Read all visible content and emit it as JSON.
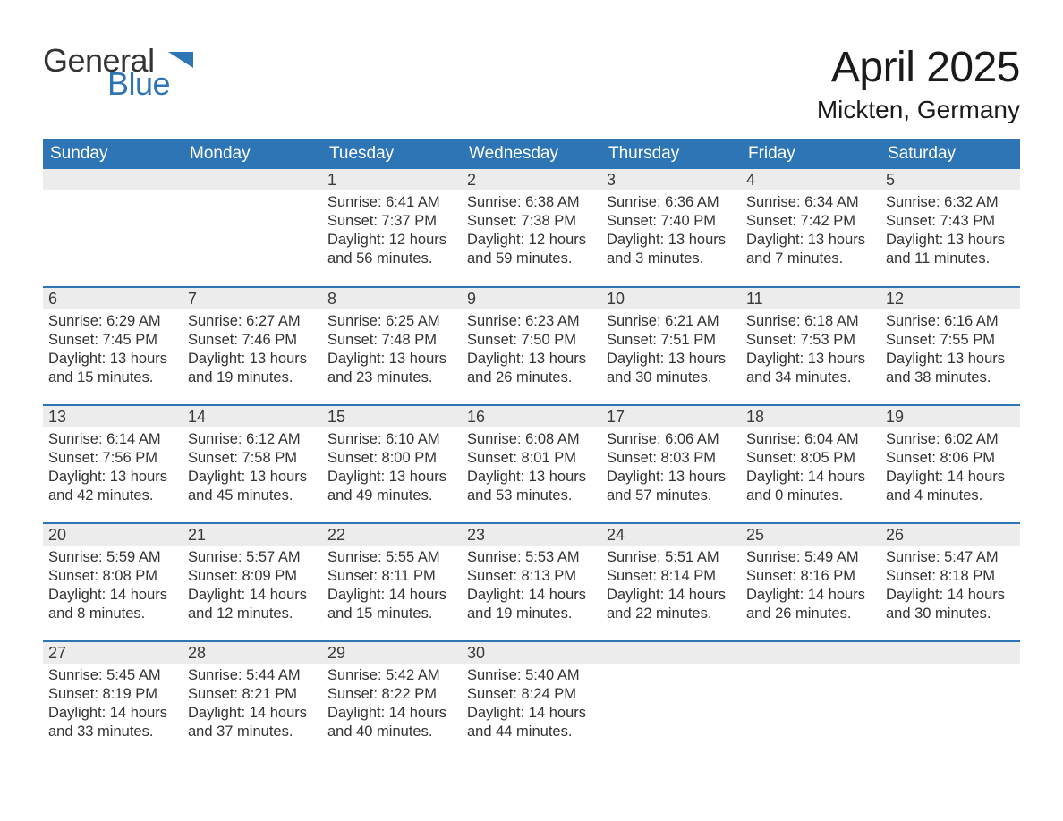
{
  "brand": {
    "logo_general": "General",
    "logo_blue": "Blue",
    "icon_color": "#2e75b6"
  },
  "colors": {
    "header_bg": "#2e75b6",
    "header_text": "#ffffff",
    "daynum_bg": "#ececec",
    "border": "#2e75b6",
    "text": "#333333",
    "page_bg": "#ffffff"
  },
  "title": {
    "month": "April 2025",
    "location": "Mickten, Germany"
  },
  "weekdays": [
    "Sunday",
    "Monday",
    "Tuesday",
    "Wednesday",
    "Thursday",
    "Friday",
    "Saturday"
  ],
  "weeks": [
    [
      {
        "n": "",
        "sunrise": "",
        "sunset": "",
        "daylight": ""
      },
      {
        "n": "",
        "sunrise": "",
        "sunset": "",
        "daylight": ""
      },
      {
        "n": "1",
        "sunrise": "Sunrise: 6:41 AM",
        "sunset": "Sunset: 7:37 PM",
        "daylight": "Daylight: 12 hours and 56 minutes."
      },
      {
        "n": "2",
        "sunrise": "Sunrise: 6:38 AM",
        "sunset": "Sunset: 7:38 PM",
        "daylight": "Daylight: 12 hours and 59 minutes."
      },
      {
        "n": "3",
        "sunrise": "Sunrise: 6:36 AM",
        "sunset": "Sunset: 7:40 PM",
        "daylight": "Daylight: 13 hours and 3 minutes."
      },
      {
        "n": "4",
        "sunrise": "Sunrise: 6:34 AM",
        "sunset": "Sunset: 7:42 PM",
        "daylight": "Daylight: 13 hours and 7 minutes."
      },
      {
        "n": "5",
        "sunrise": "Sunrise: 6:32 AM",
        "sunset": "Sunset: 7:43 PM",
        "daylight": "Daylight: 13 hours and 11 minutes."
      }
    ],
    [
      {
        "n": "6",
        "sunrise": "Sunrise: 6:29 AM",
        "sunset": "Sunset: 7:45 PM",
        "daylight": "Daylight: 13 hours and 15 minutes."
      },
      {
        "n": "7",
        "sunrise": "Sunrise: 6:27 AM",
        "sunset": "Sunset: 7:46 PM",
        "daylight": "Daylight: 13 hours and 19 minutes."
      },
      {
        "n": "8",
        "sunrise": "Sunrise: 6:25 AM",
        "sunset": "Sunset: 7:48 PM",
        "daylight": "Daylight: 13 hours and 23 minutes."
      },
      {
        "n": "9",
        "sunrise": "Sunrise: 6:23 AM",
        "sunset": "Sunset: 7:50 PM",
        "daylight": "Daylight: 13 hours and 26 minutes."
      },
      {
        "n": "10",
        "sunrise": "Sunrise: 6:21 AM",
        "sunset": "Sunset: 7:51 PM",
        "daylight": "Daylight: 13 hours and 30 minutes."
      },
      {
        "n": "11",
        "sunrise": "Sunrise: 6:18 AM",
        "sunset": "Sunset: 7:53 PM",
        "daylight": "Daylight: 13 hours and 34 minutes."
      },
      {
        "n": "12",
        "sunrise": "Sunrise: 6:16 AM",
        "sunset": "Sunset: 7:55 PM",
        "daylight": "Daylight: 13 hours and 38 minutes."
      }
    ],
    [
      {
        "n": "13",
        "sunrise": "Sunrise: 6:14 AM",
        "sunset": "Sunset: 7:56 PM",
        "daylight": "Daylight: 13 hours and 42 minutes."
      },
      {
        "n": "14",
        "sunrise": "Sunrise: 6:12 AM",
        "sunset": "Sunset: 7:58 PM",
        "daylight": "Daylight: 13 hours and 45 minutes."
      },
      {
        "n": "15",
        "sunrise": "Sunrise: 6:10 AM",
        "sunset": "Sunset: 8:00 PM",
        "daylight": "Daylight: 13 hours and 49 minutes."
      },
      {
        "n": "16",
        "sunrise": "Sunrise: 6:08 AM",
        "sunset": "Sunset: 8:01 PM",
        "daylight": "Daylight: 13 hours and 53 minutes."
      },
      {
        "n": "17",
        "sunrise": "Sunrise: 6:06 AM",
        "sunset": "Sunset: 8:03 PM",
        "daylight": "Daylight: 13 hours and 57 minutes."
      },
      {
        "n": "18",
        "sunrise": "Sunrise: 6:04 AM",
        "sunset": "Sunset: 8:05 PM",
        "daylight": "Daylight: 14 hours and 0 minutes."
      },
      {
        "n": "19",
        "sunrise": "Sunrise: 6:02 AM",
        "sunset": "Sunset: 8:06 PM",
        "daylight": "Daylight: 14 hours and 4 minutes."
      }
    ],
    [
      {
        "n": "20",
        "sunrise": "Sunrise: 5:59 AM",
        "sunset": "Sunset: 8:08 PM",
        "daylight": "Daylight: 14 hours and 8 minutes."
      },
      {
        "n": "21",
        "sunrise": "Sunrise: 5:57 AM",
        "sunset": "Sunset: 8:09 PM",
        "daylight": "Daylight: 14 hours and 12 minutes."
      },
      {
        "n": "22",
        "sunrise": "Sunrise: 5:55 AM",
        "sunset": "Sunset: 8:11 PM",
        "daylight": "Daylight: 14 hours and 15 minutes."
      },
      {
        "n": "23",
        "sunrise": "Sunrise: 5:53 AM",
        "sunset": "Sunset: 8:13 PM",
        "daylight": "Daylight: 14 hours and 19 minutes."
      },
      {
        "n": "24",
        "sunrise": "Sunrise: 5:51 AM",
        "sunset": "Sunset: 8:14 PM",
        "daylight": "Daylight: 14 hours and 22 minutes."
      },
      {
        "n": "25",
        "sunrise": "Sunrise: 5:49 AM",
        "sunset": "Sunset: 8:16 PM",
        "daylight": "Daylight: 14 hours and 26 minutes."
      },
      {
        "n": "26",
        "sunrise": "Sunrise: 5:47 AM",
        "sunset": "Sunset: 8:18 PM",
        "daylight": "Daylight: 14 hours and 30 minutes."
      }
    ],
    [
      {
        "n": "27",
        "sunrise": "Sunrise: 5:45 AM",
        "sunset": "Sunset: 8:19 PM",
        "daylight": "Daylight: 14 hours and 33 minutes."
      },
      {
        "n": "28",
        "sunrise": "Sunrise: 5:44 AM",
        "sunset": "Sunset: 8:21 PM",
        "daylight": "Daylight: 14 hours and 37 minutes."
      },
      {
        "n": "29",
        "sunrise": "Sunrise: 5:42 AM",
        "sunset": "Sunset: 8:22 PM",
        "daylight": "Daylight: 14 hours and 40 minutes."
      },
      {
        "n": "30",
        "sunrise": "Sunrise: 5:40 AM",
        "sunset": "Sunset: 8:24 PM",
        "daylight": "Daylight: 14 hours and 44 minutes."
      },
      {
        "n": "",
        "sunrise": "",
        "sunset": "",
        "daylight": ""
      },
      {
        "n": "",
        "sunrise": "",
        "sunset": "",
        "daylight": ""
      },
      {
        "n": "",
        "sunrise": "",
        "sunset": "",
        "daylight": ""
      }
    ]
  ]
}
